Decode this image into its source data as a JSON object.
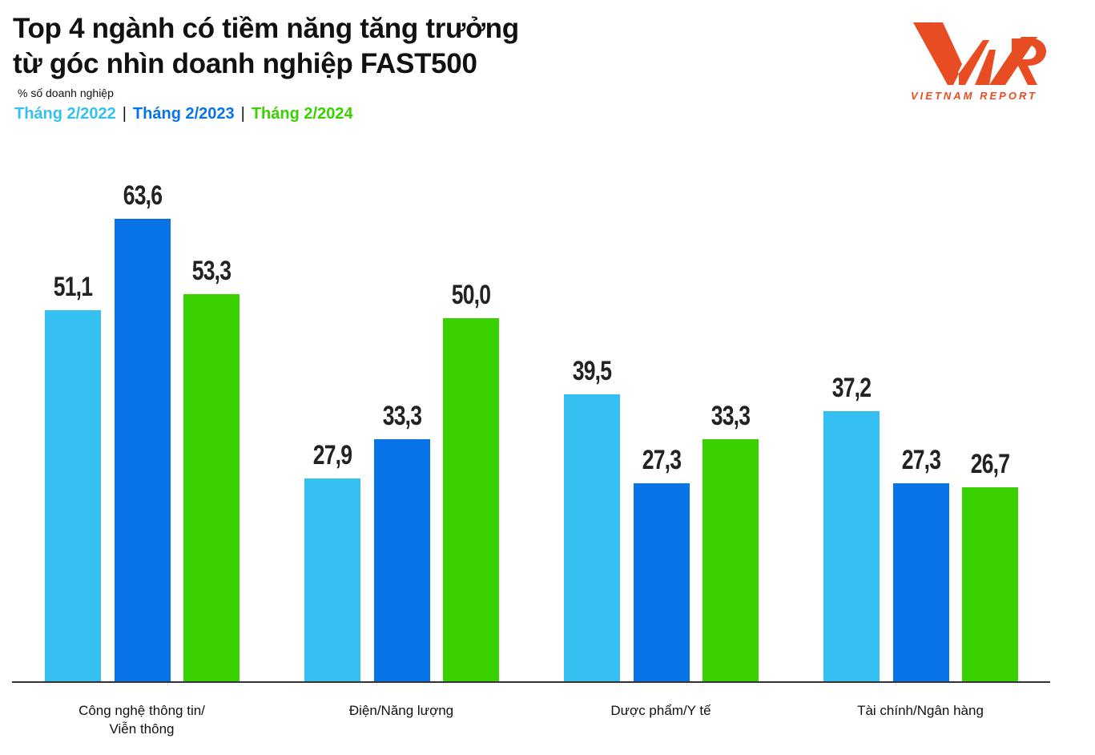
{
  "header": {
    "title_line1": "Top 4 ngành có tiềm năng tăng trưởng",
    "title_line2": "từ góc nhìn doanh nghiệp FAST500",
    "unit": "% số doanh nghiệp"
  },
  "legend": [
    {
      "label": "Tháng 2/2022",
      "color": "#36C0F2"
    },
    {
      "label": "Tháng 2/2023",
      "color": "#0873E6"
    },
    {
      "label": "Tháng 2/2024",
      "color": "#39D100"
    }
  ],
  "legend_separator": "|",
  "logo": {
    "mark": "VNR",
    "text": "VIETNAM REPORT",
    "color": "#E84C22"
  },
  "chart_data": {
    "type": "bar",
    "title": "Top 4 ngành có tiềm năng tăng trưởng từ góc nhìn doanh nghiệp FAST500",
    "subtitle": "% số doanh nghiệp",
    "xlabel": "",
    "ylabel": "% số doanh nghiệp",
    "ylim": [
      0,
      70
    ],
    "grid": false,
    "legend_position": "top-left",
    "categories": [
      "Công nghệ thông tin/ Viễn thông",
      "Điện/Năng lượng",
      "Dược phẩm/Y tế",
      "Tài chính/Ngân hàng"
    ],
    "category_lines": [
      [
        "Công nghệ thông tin/",
        "Viễn thông"
      ],
      [
        "Điện/Năng lượng"
      ],
      [
        "Dược phẩm/Y tế"
      ],
      [
        "Tài chính/Ngân hàng"
      ]
    ],
    "series": [
      {
        "name": "Tháng 2/2022",
        "color": "#36C0F2",
        "values": [
          51.1,
          27.9,
          39.5,
          37.2
        ],
        "labels": [
          "51,1",
          "27,9",
          "39,5",
          "37,2"
        ]
      },
      {
        "name": "Tháng 2/2023",
        "color": "#0873E6",
        "values": [
          63.6,
          33.3,
          27.3,
          27.3
        ],
        "labels": [
          "63,6",
          "33,3",
          "27,3",
          "27,3"
        ]
      },
      {
        "name": "Tháng 2/2024",
        "color": "#39D100",
        "values": [
          53.3,
          50.0,
          33.3,
          26.7
        ],
        "labels": [
          "53,3",
          "50,0",
          "33,3",
          "26,7"
        ]
      }
    ]
  }
}
